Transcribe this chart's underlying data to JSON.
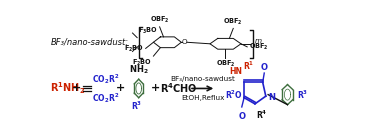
{
  "bg_color": "#ffffff",
  "catalyst_text": "BF₃/nano-sawdust",
  "conditions_text": "EtOH,Reflux",
  "sawdust_label": "BF₃/nano-sawdust:",
  "red": "#cc2200",
  "blue": "#2222cc",
  "green": "#3d6e3d",
  "black": "#111111",
  "fs_main": 7.0,
  "fs_small": 6.0,
  "fs_tiny": 5.2
}
